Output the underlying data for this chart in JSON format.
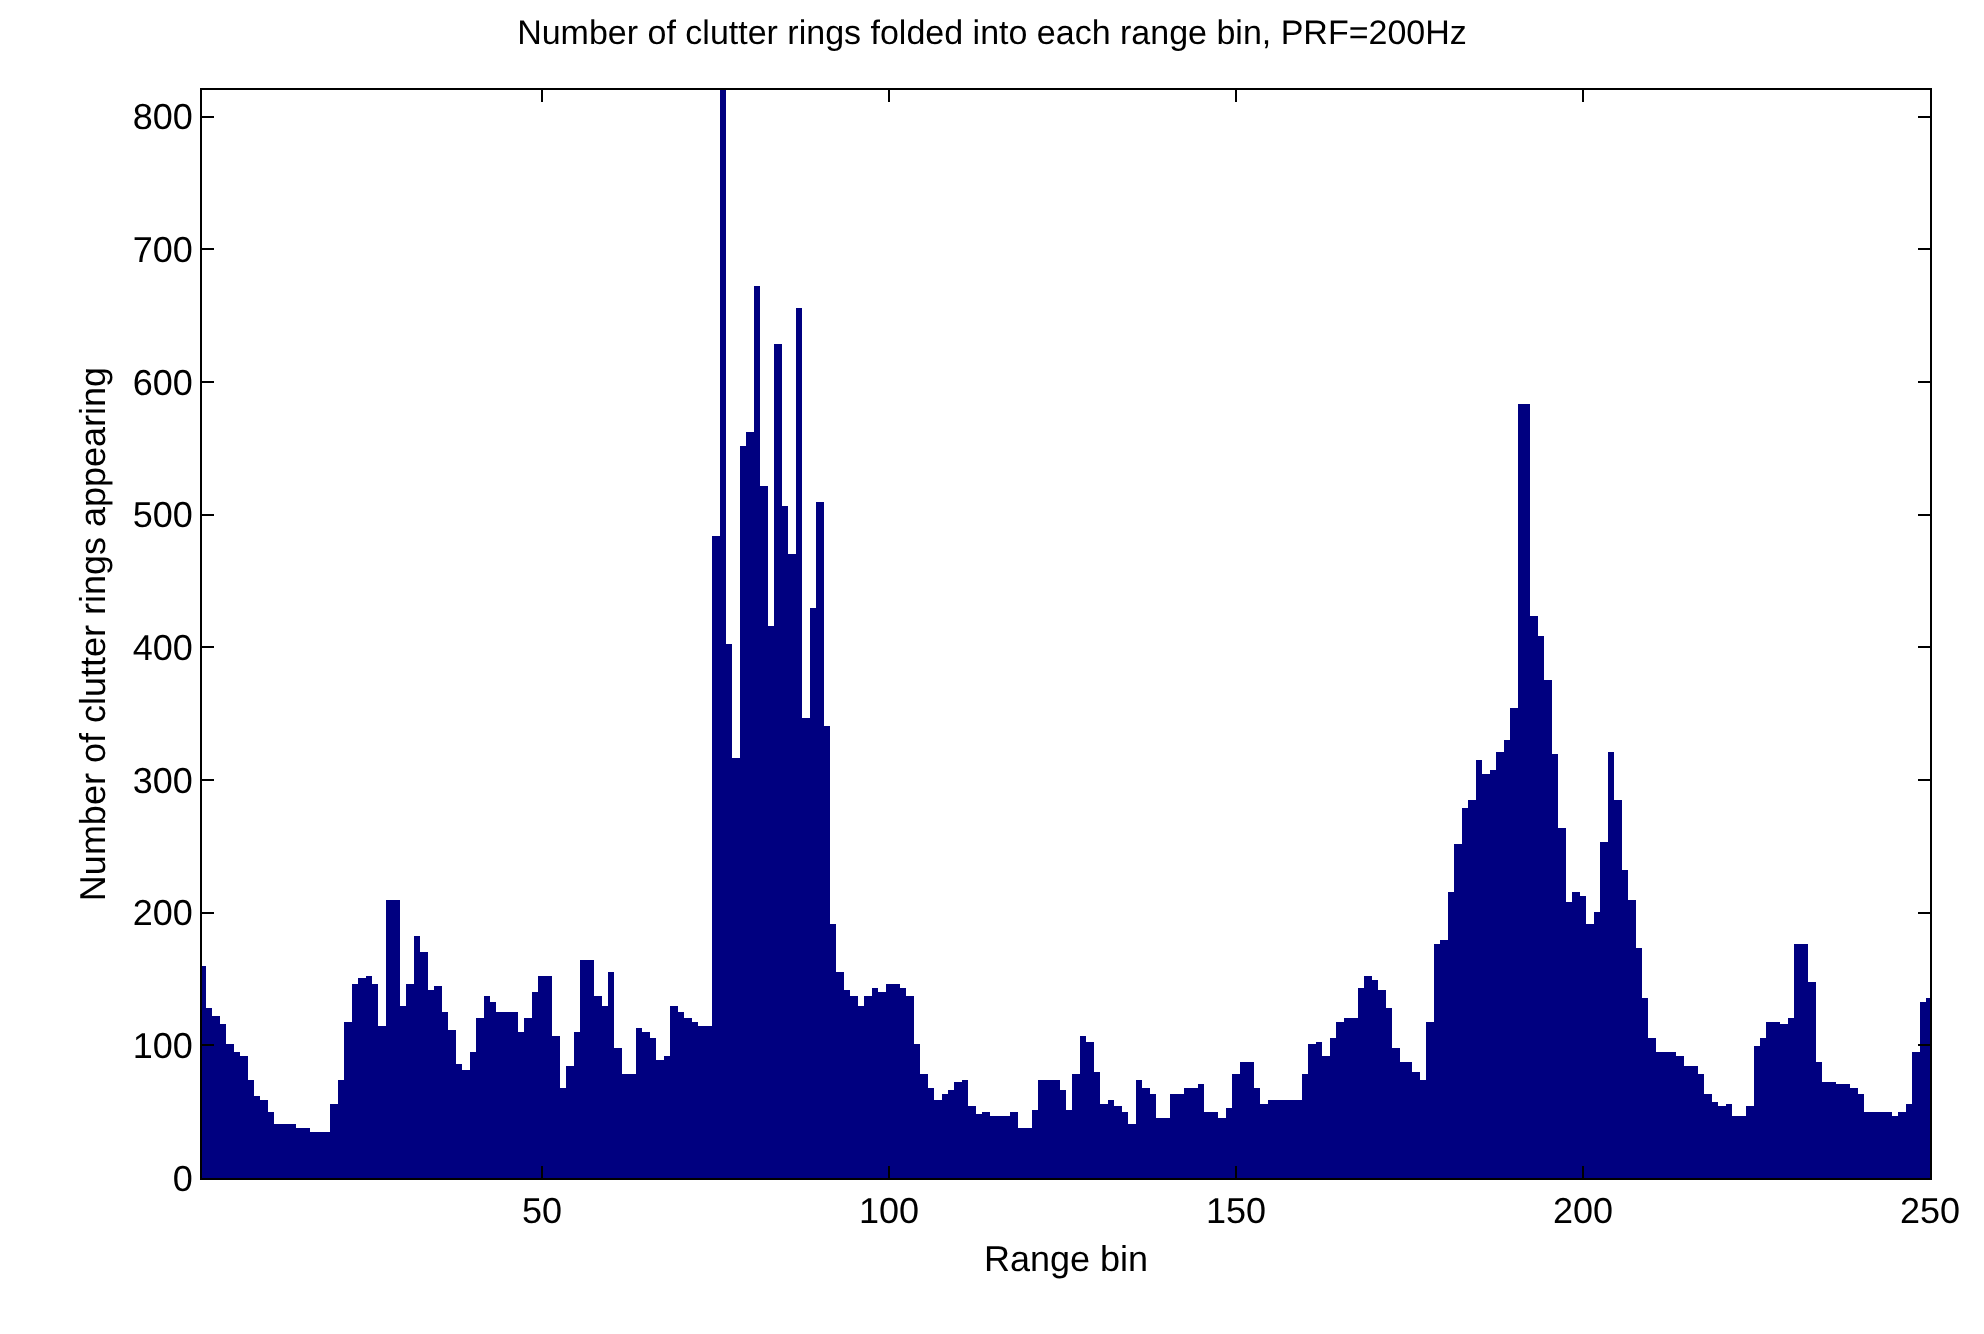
{
  "chart_data": {
    "type": "bar",
    "title": "Number of clutter rings folded into each range bin, PRF=200Hz",
    "xlabel": "Range bin",
    "ylabel": "Number of clutter rings appearing",
    "x": [
      1,
      2,
      3,
      4,
      5,
      6,
      7,
      8,
      9,
      10,
      11,
      12,
      13,
      14,
      15,
      16,
      17,
      18,
      19,
      20,
      21,
      22,
      23,
      24,
      25,
      26,
      27,
      28,
      29,
      30,
      31,
      32,
      33,
      34,
      35,
      36,
      37,
      38,
      39,
      40,
      41,
      42,
      43,
      44,
      45,
      46,
      47,
      48,
      49,
      50,
      51,
      52,
      53,
      54,
      55,
      56,
      57,
      58,
      59,
      60,
      61,
      62,
      63,
      64,
      65,
      66,
      67,
      68,
      69,
      70,
      71,
      72,
      73,
      74,
      75,
      76,
      77,
      78,
      79,
      80,
      81,
      82,
      83,
      84,
      85,
      86,
      87,
      88,
      89,
      90,
      91,
      92,
      93,
      94,
      95,
      96,
      97,
      98,
      99,
      100,
      101,
      102,
      103,
      104,
      105,
      106,
      107,
      108,
      109,
      110,
      111,
      112,
      113,
      114,
      115,
      116,
      117,
      118,
      119,
      120,
      121,
      122,
      123,
      124,
      125,
      126,
      127,
      128,
      129,
      130,
      131,
      132,
      133,
      134,
      135,
      136,
      137,
      138,
      139,
      140,
      141,
      142,
      143,
      144,
      145,
      146,
      147,
      148,
      149,
      150,
      151,
      152,
      153,
      154,
      155,
      156,
      157,
      158,
      159,
      160,
      161,
      162,
      163,
      164,
      165,
      166,
      167,
      168,
      169,
      170,
      171,
      172,
      173,
      174,
      175,
      176,
      177,
      178,
      179,
      180,
      181,
      182,
      183,
      184,
      185,
      186,
      187,
      188,
      189,
      190,
      191,
      192,
      193,
      194,
      195,
      196,
      197,
      198,
      199,
      200,
      201,
      202,
      203,
      204,
      205,
      206,
      207,
      208,
      209,
      210,
      211,
      212,
      213,
      214,
      215,
      216,
      217,
      218,
      219,
      220,
      221,
      222,
      223,
      224,
      225,
      226,
      227,
      228,
      229,
      230,
      231,
      232,
      233,
      234,
      235,
      236,
      237,
      238,
      239,
      240,
      241,
      242,
      243,
      244,
      245,
      246,
      247,
      248,
      249,
      250
    ],
    "values": [
      160,
      128,
      122,
      116,
      101,
      95,
      92,
      74,
      62,
      59,
      50,
      40,
      40,
      40,
      38,
      38,
      35,
      35,
      35,
      56,
      74,
      117,
      146,
      150,
      153,
      146,
      114,
      210,
      210,
      129,
      146,
      183,
      171,
      141,
      144,
      125,
      112,
      86,
      82,
      95,
      120,
      137,
      133,
      125,
      125,
      125,
      110,
      120,
      140,
      152,
      152,
      107,
      68,
      84,
      110,
      164,
      164,
      137,
      129,
      156,
      98,
      78,
      78,
      113,
      110,
      105,
      89,
      92,
      129,
      125,
      121,
      118,
      114,
      114,
      484,
      820,
      402,
      316,
      551,
      563,
      673,
      521,
      416,
      628,
      506,
      470,
      655,
      346,
      429,
      509,
      340,
      191,
      156,
      141,
      137,
      129,
      137,
      143,
      140,
      146,
      146,
      143,
      137,
      101,
      78,
      68,
      59,
      64,
      66,
      72,
      74,
      55,
      48,
      50,
      47,
      47,
      47,
      50,
      37,
      37,
      52,
      74,
      74,
      74,
      66,
      52,
      78,
      107,
      103,
      80,
      56,
      59,
      55,
      50,
      40,
      74,
      68,
      64,
      45,
      45,
      64,
      64,
      68,
      68,
      71,
      50,
      50,
      45,
      53,
      79,
      88,
      88,
      68,
      56,
      59,
      59,
      59,
      59,
      59,
      79,
      101,
      103,
      92,
      105,
      118,
      120,
      120,
      143,
      152,
      149,
      141,
      128,
      98,
      88,
      88,
      80,
      74,
      118,
      177,
      180,
      216,
      252,
      279,
      285,
      315,
      305,
      308,
      321,
      330,
      354,
      583,
      583,
      424,
      409,
      375,
      319,
      264,
      208,
      216,
      213,
      192,
      200,
      253,
      321,
      285,
      232,
      209,
      173,
      136,
      106,
      95,
      95,
      95,
      92,
      85,
      85,
      79,
      64,
      58,
      55,
      56,
      46,
      46,
      54,
      99,
      106,
      118,
      118,
      116,
      121,
      176,
      176,
      148,
      88,
      73,
      72,
      71,
      71,
      68,
      64,
      50,
      50,
      50,
      50,
      47,
      50,
      56,
      95,
      133,
      136
    ],
    "color": "#000080",
    "xlim": [
      1,
      250
    ],
    "xticks": [
      50,
      100,
      150,
      200,
      250
    ],
    "ylim": [
      0,
      820
    ],
    "yticks": [
      0,
      100,
      200,
      300,
      400,
      500,
      600,
      700,
      800
    ]
  }
}
